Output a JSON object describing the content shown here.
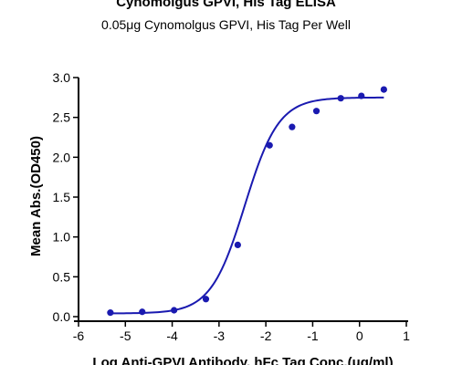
{
  "chart_data": {
    "type": "scatter",
    "title": "Cynomolgus GPVI, His Tag ELISA",
    "subtitle": "0.05μg Cynomolgus GPVI, His Tag Per Well",
    "xlabel": "Log Anti-GPVI Antibody, hFc Tag Conc.(μg/ml)",
    "ylabel": "Mean Abs.(OD450)",
    "xlim": [
      -6,
      1
    ],
    "ylim": [
      0,
      3.0
    ],
    "x_ticks": [
      "-6",
      "-5",
      "-4",
      "-3",
      "-2",
      "-1",
      "0",
      "1"
    ],
    "y_ticks": [
      "0.0",
      "0.5",
      "1.0",
      "1.5",
      "2.0",
      "2.5",
      "3.0"
    ],
    "grid": false,
    "colors": {
      "series": "#1a1ab0"
    },
    "series": [
      {
        "x": [
          -5.32,
          -4.64,
          -3.96,
          -3.28,
          -2.6,
          -1.92,
          -1.44,
          -0.92,
          -0.4,
          0.04,
          0.52
        ],
        "y": [
          0.05,
          0.06,
          0.08,
          0.22,
          0.9,
          2.15,
          2.38,
          2.58,
          2.74,
          2.77,
          2.85
        ],
        "fit": {
          "model": "4PL",
          "bottom": 0.04,
          "top": 2.75,
          "logEC50": -2.45,
          "hill": 1.2
        }
      }
    ]
  }
}
